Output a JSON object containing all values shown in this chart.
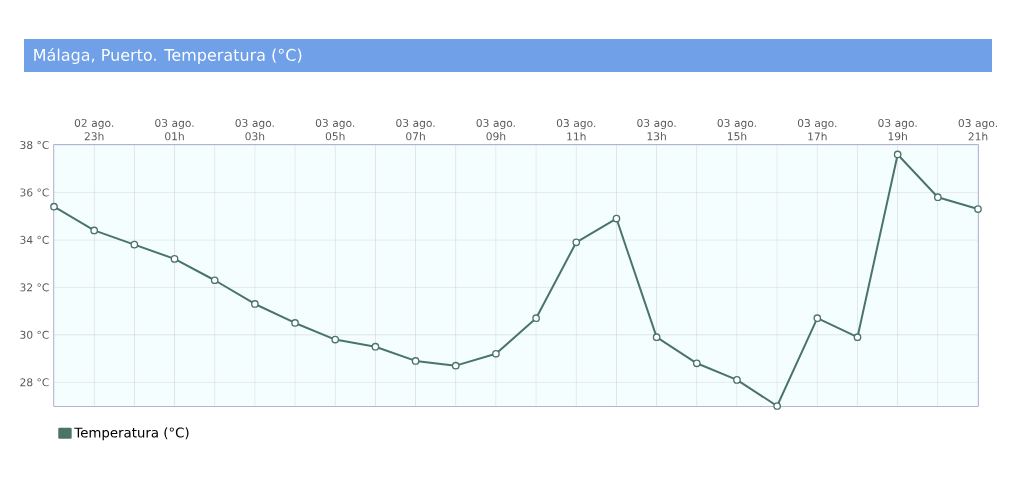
{
  "chart_data": {
    "type": "line",
    "title": "Málaga, Puerto. Temperatura (°C)",
    "categories": [
      null,
      "02 ago. 23h",
      null,
      "03 ago. 01h",
      null,
      "03 ago. 03h",
      null,
      "03 ago. 05h",
      null,
      "03 ago. 07h",
      null,
      "03 ago. 09h",
      null,
      "03 ago. 11h",
      null,
      "03 ago. 13h",
      null,
      "03 ago. 15h",
      null,
      "03 ago. 17h",
      null,
      "03 ago. 19h",
      null,
      "03 ago. 21h"
    ],
    "series": [
      {
        "name": "Temperatura (°C)",
        "color": "#4a7566",
        "values": [
          35.4,
          34.4,
          33.8,
          33.2,
          32.3,
          31.3,
          30.5,
          29.8,
          29.5,
          28.9,
          28.7,
          29.2,
          30.7,
          33.9,
          34.9,
          29.9,
          28.8,
          28.1,
          27.0,
          30.7,
          29.9,
          37.6,
          35.8,
          35.3
        ]
      }
    ],
    "ylim": [
      27,
      38
    ],
    "yticks": [
      {
        "value": 28,
        "label": "28 °C"
      },
      {
        "value": 30,
        "label": "30 °C"
      },
      {
        "value": 32,
        "label": "32 °C"
      },
      {
        "value": 34,
        "label": "34 °C"
      },
      {
        "value": 36,
        "label": "36 °C"
      },
      {
        "value": 38,
        "label": "38 °C"
      }
    ],
    "grid": true,
    "legend": "bottom left",
    "marker": "circle",
    "line_style": "solid"
  }
}
